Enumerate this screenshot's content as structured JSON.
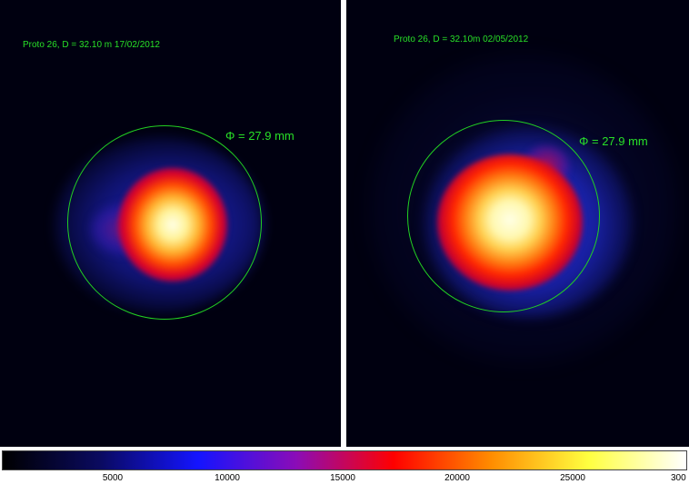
{
  "panels": [
    {
      "caption": "Proto 26, D = 32.10 m  17/02/2012",
      "diameter_label": "Φ = 27.9 mm"
    },
    {
      "caption": "Proto 26, D = 32.10m  02/05/2012",
      "diameter_label": "Φ = 27.9 mm"
    }
  ],
  "colors": {
    "annotation": "#28e028",
    "ring": "#22d022",
    "background": "#000010"
  },
  "colorbar": {
    "stops": [
      "#000000",
      "#0a0a60",
      "#1414ff",
      "#8a0cb8",
      "#ff0000",
      "#ff8c00",
      "#ffff40",
      "#ffffff"
    ],
    "ticks": [
      "5000",
      "10000",
      "15000",
      "20000",
      "25000",
      "300"
    ]
  }
}
